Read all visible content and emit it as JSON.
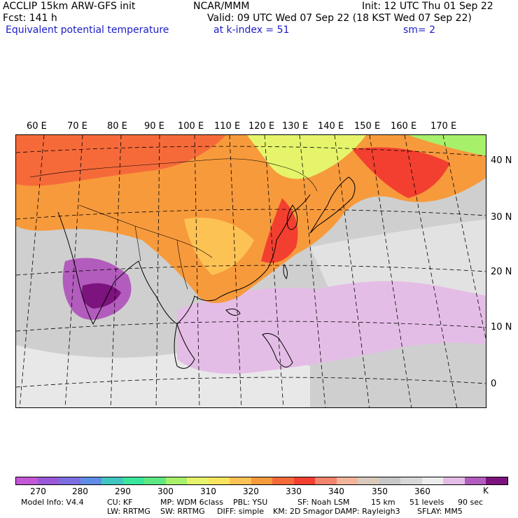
{
  "header": {
    "model": "ACCLIP 15km ARW-GFS init",
    "org": "NCAR/MMM",
    "init": "Init: 12 UTC Thu 01 Sep 22",
    "fcst": "Fcst:  141 h",
    "valid": "Valid: 09 UTC Wed 07 Sep 22 (18 KST Wed 07 Sep 22)",
    "field": "Equivalent potential temperature",
    "level": "at k-index =  51",
    "smooth": "sm= 2"
  },
  "map": {
    "lon_labels": [
      "60 E",
      "70 E",
      "80 E",
      "90 E",
      "100 E",
      "110 E",
      "120 E",
      "130 E",
      "140 E",
      "150 E",
      "160 E",
      "170 E"
    ],
    "lat_labels": [
      "40 N",
      "30 N",
      "20 N",
      "10 N",
      "0"
    ]
  },
  "colorbar": {
    "unit": "K",
    "colors": [
      "#c457d6",
      "#9a58d8",
      "#7b6de2",
      "#5e8ce6",
      "#3fc6c0",
      "#39e69b",
      "#5ee882",
      "#a6f06a",
      "#e6f46c",
      "#f8e45e",
      "#fcc254",
      "#f79a3c",
      "#f66a3a",
      "#f23f2f",
      "#f4846c",
      "#f4b49b",
      "#d9cabb",
      "#c8c8c8",
      "#d8d8d8",
      "#ececec",
      "#e4bde6",
      "#b25cbd",
      "#7c137e"
    ],
    "labels": [
      "270",
      "280",
      "290",
      "300",
      "310",
      "320",
      "330",
      "340",
      "350",
      "360"
    ]
  },
  "footer": {
    "line1": [
      "Model Info: V4.4",
      "CU: KF",
      "MP: WDM 6class",
      "PBL: YSU",
      "SF: Noah LSM",
      "15 km",
      "51 levels",
      "90 sec"
    ],
    "line2": [
      "LW: RRTMG",
      "SW: RRTMG",
      "DIFF: simple",
      "KM: 2D Smagor",
      "DAMP: Rayleigh3",
      "SFLAY: MM5"
    ]
  }
}
